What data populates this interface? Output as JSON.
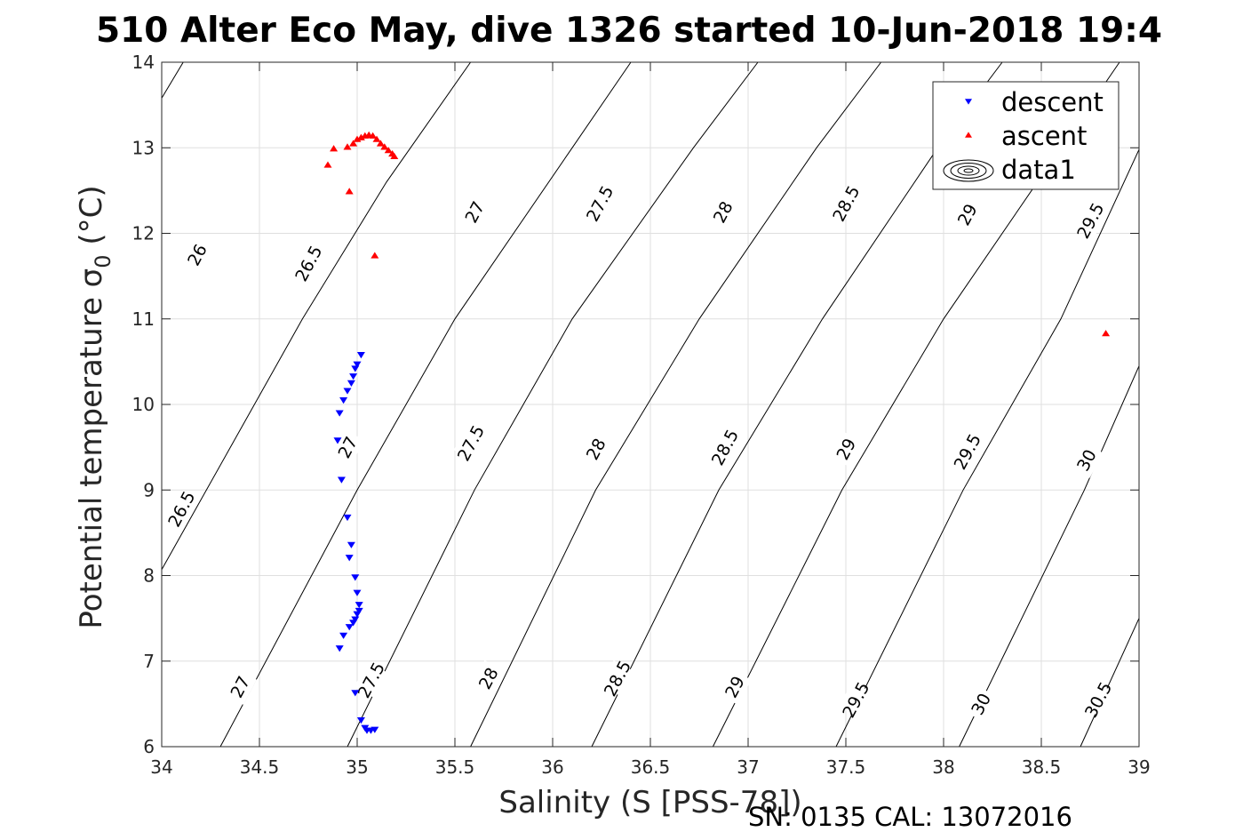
{
  "chart_data": {
    "type": "scatter",
    "title": "510 Alter Eco May, dive 1326 started 10-Jun-2018 19:4",
    "xlabel": "Salinity (S [PSS-78])",
    "ylabel": "Potential temperature σ",
    "ylabel_sub": "0",
    "ylabel_unit": " (°C)",
    "footer": "SN: 0135  CAL: 13072016",
    "xlim": [
      34,
      39
    ],
    "ylim": [
      6,
      14
    ],
    "xticks": [
      "34",
      "34.5",
      "35",
      "35.5",
      "36",
      "36.5",
      "37",
      "37.5",
      "38",
      "38.5",
      "39"
    ],
    "yticks": [
      "6",
      "7",
      "8",
      "9",
      "10",
      "11",
      "12",
      "13",
      "14"
    ],
    "grid": true,
    "legend": {
      "placement": "top-right",
      "entries": [
        {
          "name": "descent",
          "marker": "triangle-down",
          "color": "#0000ff"
        },
        {
          "name": "ascent",
          "marker": "triangle-up",
          "color": "#ff0000"
        },
        {
          "name": "data1",
          "marker": "contour",
          "color": "#000000"
        }
      ]
    },
    "series": [
      {
        "name": "descent",
        "color": "#0000ff",
        "points": [
          [
            35.02,
            10.58
          ],
          [
            35.0,
            10.47
          ],
          [
            34.99,
            10.42
          ],
          [
            34.98,
            10.33
          ],
          [
            34.97,
            10.25
          ],
          [
            34.95,
            10.16
          ],
          [
            34.93,
            10.05
          ],
          [
            34.91,
            9.9
          ],
          [
            34.9,
            9.58
          ],
          [
            34.92,
            9.12
          ],
          [
            34.95,
            8.68
          ],
          [
            34.97,
            8.36
          ],
          [
            34.96,
            8.21
          ],
          [
            34.99,
            7.98
          ],
          [
            35.0,
            7.8
          ],
          [
            35.01,
            7.66
          ],
          [
            35.01,
            7.59
          ],
          [
            35.0,
            7.55
          ],
          [
            34.99,
            7.49
          ],
          [
            34.98,
            7.45
          ],
          [
            34.96,
            7.4
          ],
          [
            34.93,
            7.3
          ],
          [
            34.91,
            7.15
          ],
          [
            34.99,
            6.63
          ],
          [
            35.02,
            6.31
          ],
          [
            35.04,
            6.22
          ],
          [
            35.05,
            6.19
          ],
          [
            35.07,
            6.19
          ],
          [
            35.09,
            6.2
          ]
        ]
      },
      {
        "name": "ascent",
        "color": "#ff0000",
        "points": [
          [
            34.85,
            12.8
          ],
          [
            34.88,
            12.99
          ],
          [
            34.95,
            13.01
          ],
          [
            34.98,
            13.05
          ],
          [
            35.0,
            13.1
          ],
          [
            35.02,
            13.12
          ],
          [
            35.04,
            13.14
          ],
          [
            35.06,
            13.15
          ],
          [
            35.08,
            13.14
          ],
          [
            35.1,
            13.1
          ],
          [
            35.12,
            13.05
          ],
          [
            35.14,
            13.01
          ],
          [
            35.16,
            12.97
          ],
          [
            35.18,
            12.93
          ],
          [
            35.19,
            12.9
          ],
          [
            34.96,
            12.49
          ],
          [
            35.09,
            11.74
          ],
          [
            38.83,
            10.83
          ]
        ]
      }
    ],
    "contours": [
      {
        "label": "26",
        "points": [
          [
            34.0,
            13.58
          ],
          [
            34.11,
            14.0
          ]
        ],
        "label_at": [
          34.18,
          11.75
        ]
      },
      {
        "label": "26.5",
        "points": [
          [
            34.0,
            8.07
          ],
          [
            34.72,
            11.0
          ],
          [
            35.15,
            12.6
          ],
          [
            35.58,
            14.0
          ]
        ],
        "label_at": [
          34.1,
          8.78
        ]
      },
      {
        "label": "26.5",
        "points": [],
        "label_at": [
          34.75,
          11.65
        ]
      },
      {
        "label": "27",
        "points": [
          [
            34.3,
            6.0
          ],
          [
            35.0,
            9.0
          ],
          [
            35.5,
            11.0
          ],
          [
            36.1,
            13.0
          ],
          [
            36.4,
            14.0
          ]
        ],
        "label_at": [
          34.4,
          6.7
        ]
      },
      {
        "label": "27",
        "points": [],
        "label_at": [
          34.95,
          9.5
        ]
      },
      {
        "label": "27",
        "points": [],
        "label_at": [
          35.6,
          12.25
        ]
      },
      {
        "label": "27.5",
        "points": [
          [
            34.95,
            6.0
          ],
          [
            35.6,
            9.0
          ],
          [
            36.1,
            11.0
          ],
          [
            36.72,
            13.0
          ],
          [
            37.05,
            14.0
          ]
        ],
        "label_at": [
          35.07,
          6.78
        ]
      },
      {
        "label": "27.5",
        "points": [],
        "label_at": [
          35.58,
          9.55
        ]
      },
      {
        "label": "27.5",
        "points": [],
        "label_at": [
          36.24,
          12.35
        ]
      },
      {
        "label": "28",
        "points": [
          [
            35.58,
            6.0
          ],
          [
            36.22,
            9.0
          ],
          [
            36.75,
            11.0
          ],
          [
            37.35,
            13.0
          ],
          [
            37.68,
            14.0
          ]
        ],
        "label_at": [
          35.67,
          6.8
        ]
      },
      {
        "label": "28",
        "points": [],
        "label_at": [
          36.22,
          9.48
        ]
      },
      {
        "label": "28",
        "points": [],
        "label_at": [
          36.87,
          12.25
        ]
      },
      {
        "label": "28.5",
        "points": [
          [
            36.2,
            6.0
          ],
          [
            36.85,
            9.0
          ],
          [
            37.38,
            11.0
          ],
          [
            37.97,
            13.0
          ],
          [
            38.3,
            14.0
          ]
        ],
        "label_at": [
          36.33,
          6.8
        ]
      },
      {
        "label": "28.5",
        "points": [],
        "label_at": [
          36.88,
          9.5
        ]
      },
      {
        "label": "28.5",
        "points": [],
        "label_at": [
          37.5,
          12.35
        ]
      },
      {
        "label": "29",
        "points": [
          [
            36.82,
            6.0
          ],
          [
            37.48,
            9.0
          ],
          [
            38.0,
            11.0
          ],
          [
            38.6,
            13.0
          ],
          [
            38.9,
            14.0
          ]
        ],
        "label_at": [
          36.93,
          6.7
        ]
      },
      {
        "label": "29",
        "points": [],
        "label_at": [
          37.5,
          9.48
        ]
      },
      {
        "label": "29",
        "points": [],
        "label_at": [
          38.12,
          12.22
        ]
      },
      {
        "label": "29.5",
        "points": [
          [
            37.45,
            6.0
          ],
          [
            38.1,
            9.0
          ],
          [
            38.6,
            11.0
          ],
          [
            39.0,
            12.98
          ]
        ],
        "label_at": [
          37.55,
          6.55
        ]
      },
      {
        "label": "29.5",
        "points": [],
        "label_at": [
          38.12,
          9.45
        ]
      },
      {
        "label": "29.5",
        "points": [],
        "label_at": [
          38.75,
          12.15
        ]
      },
      {
        "label": "30",
        "points": [
          [
            38.08,
            6.0
          ],
          [
            38.72,
            9.0
          ],
          [
            39.0,
            10.45
          ]
        ],
        "label_at": [
          38.19,
          6.5
        ]
      },
      {
        "label": "30",
        "points": [],
        "label_at": [
          38.73,
          9.35
        ]
      },
      {
        "label": "30.5",
        "points": [
          [
            38.7,
            6.0
          ],
          [
            39.0,
            7.5
          ]
        ],
        "label_at": [
          38.79,
          6.55
        ]
      }
    ]
  }
}
